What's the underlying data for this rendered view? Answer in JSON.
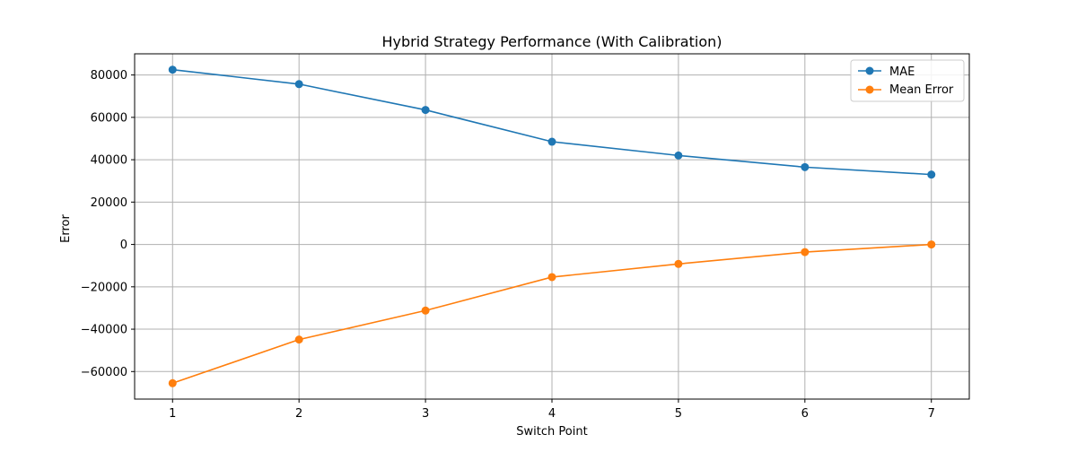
{
  "chart_data": {
    "type": "line",
    "title": "Hybrid Strategy Performance (With Calibration)",
    "xlabel": "Switch Point",
    "ylabel": "Error",
    "x": [
      1,
      2,
      3,
      4,
      5,
      6,
      7
    ],
    "xlim": [
      0.7,
      7.3
    ],
    "ylim": [
      -73000,
      90000
    ],
    "yticks": [
      -60000,
      -40000,
      -20000,
      0,
      20000,
      40000,
      60000,
      80000
    ],
    "ytick_labels": [
      "−60000",
      "−40000",
      "−20000",
      "0",
      "20000",
      "40000",
      "60000",
      "80000"
    ],
    "xtick_labels": [
      "1",
      "2",
      "3",
      "4",
      "5",
      "6",
      "7"
    ],
    "grid": true,
    "legend_position": "top-right",
    "series": [
      {
        "name": "MAE",
        "color": "#1f77b4",
        "marker": "circle",
        "values": [
          82500,
          75700,
          63500,
          48500,
          42000,
          36500,
          33000
        ]
      },
      {
        "name": "Mean Error",
        "color": "#ff7f0e",
        "marker": "circle",
        "values": [
          -65500,
          -44900,
          -31200,
          -15400,
          -9200,
          -3600,
          0
        ]
      }
    ]
  }
}
